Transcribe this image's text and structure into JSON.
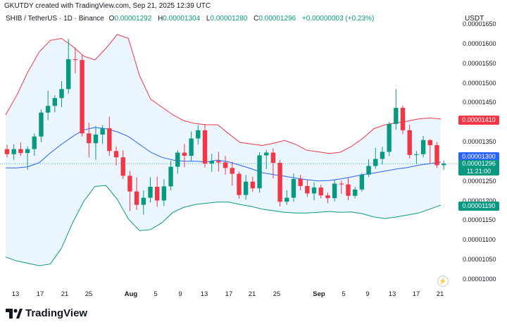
{
  "header": {
    "created_by": "GKUTDY created with TradingView.com, Sep 21, 2025 12:39 UTC"
  },
  "legend": {
    "symbol": "SHIB / TetherUS · 1D · Binance",
    "open_label": "O",
    "open": "0.00001292",
    "high_label": "H",
    "high": "0.00001304",
    "low_label": "L",
    "low": "0.00001280",
    "close_label": "C",
    "close": "0.00001296",
    "change": "+0.00000003 (+0.23%)"
  },
  "currency": "USDT",
  "price_tags": {
    "upper_band": "0.00001410",
    "basis": "0.00001300",
    "last_price": "0.00001296",
    "countdown": "11:21:00",
    "lower_band": "0.00001190"
  },
  "footer": {
    "brand": "TradingView"
  },
  "colors": {
    "up": "#089981",
    "down": "#f23645",
    "basis": "#2962ff",
    "upper_band": "#f23645",
    "lower_band": "#089981",
    "band_fill": "#e3f2fd"
  },
  "icons": {
    "logo": "tradingview-logo-icon",
    "alert": "lightning-icon"
  },
  "chart_data": {
    "type": "candlestick",
    "x_ticks": [
      "13",
      "17",
      "21",
      "25",
      "Aug",
      "5",
      "9",
      "13",
      "17",
      "21",
      "25",
      "Sep",
      "5",
      "9",
      "13",
      "17",
      "21"
    ],
    "y_ticks": [
      "0.00001650",
      "0.00001600",
      "0.00001550",
      "0.00001500",
      "0.00001450",
      "0.00001400",
      "0.00001350",
      "0.00001300",
      "0.00001250",
      "0.00001200",
      "0.00001150",
      "0.00001100",
      "0.00001050",
      "0.00001000"
    ],
    "ylim": [
      9.72e-06,
      1.66e-05
    ],
    "candles": [
      {
        "o": 1.333,
        "h": 1.344,
        "l": 1.312,
        "c": 1.32
      },
      {
        "o": 1.32,
        "h": 1.345,
        "l": 1.305,
        "c": 1.333
      },
      {
        "o": 1.333,
        "h": 1.35,
        "l": 1.316,
        "c": 1.323
      },
      {
        "o": 1.323,
        "h": 1.34,
        "l": 1.28,
        "c": 1.333
      },
      {
        "o": 1.333,
        "h": 1.373,
        "l": 1.316,
        "c": 1.365
      },
      {
        "o": 1.365,
        "h": 1.434,
        "l": 1.351,
        "c": 1.426
      },
      {
        "o": 1.426,
        "h": 1.482,
        "l": 1.407,
        "c": 1.443
      },
      {
        "o": 1.443,
        "h": 1.47,
        "l": 1.427,
        "c": 1.463
      },
      {
        "o": 1.463,
        "h": 1.506,
        "l": 1.44,
        "c": 1.486
      },
      {
        "o": 1.486,
        "h": 1.614,
        "l": 1.474,
        "c": 1.562
      },
      {
        "o": 1.562,
        "h": 1.592,
        "l": 1.526,
        "c": 1.56
      },
      {
        "o": 1.56,
        "h": 1.573,
        "l": 1.365,
        "c": 1.373
      },
      {
        "o": 1.373,
        "h": 1.4,
        "l": 1.312,
        "c": 1.348
      },
      {
        "o": 1.348,
        "h": 1.392,
        "l": 1.306,
        "c": 1.37
      },
      {
        "o": 1.37,
        "h": 1.394,
        "l": 1.346,
        "c": 1.386
      },
      {
        "o": 1.386,
        "h": 1.416,
        "l": 1.316,
        "c": 1.328
      },
      {
        "o": 1.328,
        "h": 1.34,
        "l": 1.291,
        "c": 1.312
      },
      {
        "o": 1.312,
        "h": 1.33,
        "l": 1.257,
        "c": 1.265
      },
      {
        "o": 1.265,
        "h": 1.277,
        "l": 1.175,
        "c": 1.225
      },
      {
        "o": 1.225,
        "h": 1.261,
        "l": 1.178,
        "c": 1.191
      },
      {
        "o": 1.191,
        "h": 1.228,
        "l": 1.166,
        "c": 1.209
      },
      {
        "o": 1.209,
        "h": 1.261,
        "l": 1.197,
        "c": 1.237
      },
      {
        "o": 1.237,
        "h": 1.263,
        "l": 1.186,
        "c": 1.202
      },
      {
        "o": 1.202,
        "h": 1.256,
        "l": 1.188,
        "c": 1.238
      },
      {
        "o": 1.238,
        "h": 1.303,
        "l": 1.228,
        "c": 1.288
      },
      {
        "o": 1.288,
        "h": 1.33,
        "l": 1.27,
        "c": 1.324
      },
      {
        "o": 1.324,
        "h": 1.346,
        "l": 1.287,
        "c": 1.316
      },
      {
        "o": 1.316,
        "h": 1.378,
        "l": 1.301,
        "c": 1.36
      },
      {
        "o": 1.36,
        "h": 1.394,
        "l": 1.345,
        "c": 1.381
      },
      {
        "o": 1.381,
        "h": 1.397,
        "l": 1.286,
        "c": 1.296
      },
      {
        "o": 1.296,
        "h": 1.321,
        "l": 1.275,
        "c": 1.303
      },
      {
        "o": 1.303,
        "h": 1.326,
        "l": 1.276,
        "c": 1.299
      },
      {
        "o": 1.299,
        "h": 1.316,
        "l": 1.268,
        "c": 1.285
      },
      {
        "o": 1.285,
        "h": 1.301,
        "l": 1.24,
        "c": 1.27
      },
      {
        "o": 1.27,
        "h": 1.276,
        "l": 1.207,
        "c": 1.216
      },
      {
        "o": 1.216,
        "h": 1.267,
        "l": 1.204,
        "c": 1.25
      },
      {
        "o": 1.25,
        "h": 1.263,
        "l": 1.224,
        "c": 1.233
      },
      {
        "o": 1.233,
        "h": 1.325,
        "l": 1.222,
        "c": 1.317
      },
      {
        "o": 1.317,
        "h": 1.331,
        "l": 1.282,
        "c": 1.324
      },
      {
        "o": 1.324,
        "h": 1.335,
        "l": 1.258,
        "c": 1.298
      },
      {
        "o": 1.298,
        "h": 1.305,
        "l": 1.187,
        "c": 1.199
      },
      {
        "o": 1.199,
        "h": 1.228,
        "l": 1.191,
        "c": 1.209
      },
      {
        "o": 1.209,
        "h": 1.271,
        "l": 1.199,
        "c": 1.257
      },
      {
        "o": 1.257,
        "h": 1.267,
        "l": 1.228,
        "c": 1.239
      },
      {
        "o": 1.239,
        "h": 1.255,
        "l": 1.211,
        "c": 1.22
      },
      {
        "o": 1.22,
        "h": 1.248,
        "l": 1.203,
        "c": 1.235
      },
      {
        "o": 1.235,
        "h": 1.242,
        "l": 1.208,
        "c": 1.215
      },
      {
        "o": 1.215,
        "h": 1.222,
        "l": 1.195,
        "c": 1.208
      },
      {
        "o": 1.208,
        "h": 1.254,
        "l": 1.2,
        "c": 1.245
      },
      {
        "o": 1.245,
        "h": 1.253,
        "l": 1.219,
        "c": 1.243
      },
      {
        "o": 1.243,
        "h": 1.259,
        "l": 1.203,
        "c": 1.214
      },
      {
        "o": 1.214,
        "h": 1.237,
        "l": 1.208,
        "c": 1.23
      },
      {
        "o": 1.23,
        "h": 1.272,
        "l": 1.224,
        "c": 1.268
      },
      {
        "o": 1.268,
        "h": 1.307,
        "l": 1.262,
        "c": 1.29
      },
      {
        "o": 1.29,
        "h": 1.336,
        "l": 1.283,
        "c": 1.308
      },
      {
        "o": 1.308,
        "h": 1.339,
        "l": 1.294,
        "c": 1.326
      },
      {
        "o": 1.326,
        "h": 1.402,
        "l": 1.316,
        "c": 1.397
      },
      {
        "o": 1.397,
        "h": 1.486,
        "l": 1.382,
        "c": 1.438
      },
      {
        "o": 1.438,
        "h": 1.444,
        "l": 1.371,
        "c": 1.381
      },
      {
        "o": 1.381,
        "h": 1.395,
        "l": 1.309,
        "c": 1.318
      },
      {
        "o": 1.318,
        "h": 1.328,
        "l": 1.295,
        "c": 1.32
      },
      {
        "o": 1.32,
        "h": 1.366,
        "l": 1.312,
        "c": 1.356
      },
      {
        "o": 1.356,
        "h": 1.358,
        "l": 1.297,
        "c": 1.343
      },
      {
        "o": 1.343,
        "h": 1.351,
        "l": 1.285,
        "c": 1.292
      },
      {
        "o": 1.292,
        "h": 1.304,
        "l": 1.28,
        "c": 1.296
      }
    ],
    "bollinger": {
      "upper": [
        1.42,
        1.47,
        1.53,
        1.58,
        1.61,
        1.615,
        1.595,
        1.57,
        1.56,
        1.59,
        1.625,
        1.615,
        1.52,
        1.46,
        1.44,
        1.42,
        1.405,
        1.398,
        1.395,
        1.395,
        1.372,
        1.35,
        1.346,
        1.342,
        1.348,
        1.355,
        1.345,
        1.33,
        1.326,
        1.322,
        1.325,
        1.34,
        1.36,
        1.385,
        1.395,
        1.4,
        1.404,
        1.41,
        1.412,
        1.41
      ],
      "basis": [
        1.285,
        1.285,
        1.288,
        1.298,
        1.323,
        1.345,
        1.365,
        1.382,
        1.388,
        1.385,
        1.377,
        1.365,
        1.345,
        1.325,
        1.312,
        1.305,
        1.302,
        1.302,
        1.3,
        1.305,
        1.3,
        1.292,
        1.283,
        1.273,
        1.268,
        1.264,
        1.259,
        1.255,
        1.252,
        1.253,
        1.257,
        1.262,
        1.268,
        1.272,
        1.277,
        1.282,
        1.286,
        1.292,
        1.296,
        1.3
      ],
      "lower": [
        1.058,
        1.048,
        1.042,
        1.036,
        1.04,
        1.08,
        1.145,
        1.2,
        1.238,
        1.24,
        1.205,
        1.155,
        1.125,
        1.128,
        1.145,
        1.172,
        1.185,
        1.192,
        1.195,
        1.198,
        1.198,
        1.192,
        1.187,
        1.18,
        1.176,
        1.172,
        1.17,
        1.17,
        1.172,
        1.174,
        1.172,
        1.173,
        1.168,
        1.16,
        1.156,
        1.16,
        1.165,
        1.17,
        1.18,
        1.19
      ],
      "unit_scale": 1e-05
    },
    "unit_scale": 1e-05
  }
}
